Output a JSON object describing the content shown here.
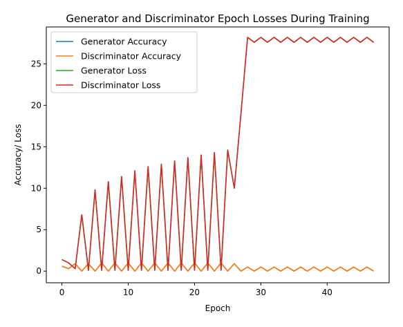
{
  "chart_data": {
    "type": "line",
    "title": "Generator and Discriminator Epoch Losses During Training",
    "xlabel": "Epoch",
    "ylabel": "Accuracy/ Loss",
    "xlim": [
      -2.35,
      49.35
    ],
    "ylim": [
      -1.4,
      29.45
    ],
    "xticks": [
      0,
      10,
      20,
      30,
      40
    ],
    "yticks": [
      0,
      5,
      10,
      15,
      20,
      25
    ],
    "grid": false,
    "legend_position": "top-left",
    "x": [
      0,
      1,
      2,
      3,
      4,
      5,
      6,
      7,
      8,
      9,
      10,
      11,
      12,
      13,
      14,
      15,
      16,
      17,
      18,
      19,
      20,
      21,
      22,
      23,
      24,
      25,
      26,
      27,
      28,
      29,
      30,
      31,
      32,
      33,
      34,
      35,
      36,
      37,
      38,
      39,
      40,
      41,
      42,
      43,
      44,
      45,
      46,
      47
    ],
    "series": [
      {
        "name": "Generator Accuracy",
        "color": "#1f77b4",
        "values": [
          0.6,
          0.3,
          0.9,
          0.0,
          0.9,
          0.0,
          1.0,
          0.0,
          1.0,
          0.0,
          1.0,
          0.0,
          1.0,
          0.0,
          1.0,
          0.0,
          1.0,
          0.0,
          1.0,
          0.0,
          1.0,
          0.0,
          1.0,
          0.0,
          1.0,
          0.0,
          0.9,
          0.0,
          0.5,
          0.0,
          0.5,
          0.0,
          0.5,
          0.0,
          0.5,
          0.0,
          0.5,
          0.0,
          0.5,
          0.0,
          0.5,
          0.0,
          0.5,
          0.0,
          0.5,
          0.0,
          0.5,
          0.0
        ]
      },
      {
        "name": "Discriminator Accuracy",
        "color": "#ff7f0e",
        "values": [
          0.6,
          0.3,
          0.9,
          0.0,
          0.9,
          0.0,
          1.0,
          0.0,
          1.0,
          0.0,
          1.0,
          0.0,
          1.0,
          0.0,
          1.0,
          0.0,
          1.0,
          0.0,
          1.0,
          0.0,
          1.0,
          0.0,
          1.0,
          0.0,
          1.0,
          0.0,
          0.9,
          0.0,
          0.5,
          0.0,
          0.5,
          0.0,
          0.5,
          0.0,
          0.5,
          0.0,
          0.5,
          0.0,
          0.5,
          0.0,
          0.5,
          0.0,
          0.5,
          0.0,
          0.5,
          0.0,
          0.5,
          0.0
        ]
      },
      {
        "name": "Generator Loss",
        "color": "#2ca02c",
        "values": [
          1.4,
          1.0,
          0.3,
          6.8,
          0.1,
          9.8,
          0.1,
          10.8,
          0.1,
          11.4,
          0.1,
          12.1,
          0.1,
          12.6,
          0.1,
          12.9,
          0.1,
          13.3,
          0.1,
          13.7,
          0.1,
          14.0,
          0.1,
          14.3,
          0.1,
          14.6,
          10.0,
          19.0,
          28.2,
          27.6,
          28.2,
          27.6,
          28.2,
          27.6,
          28.2,
          27.6,
          28.2,
          27.6,
          28.2,
          27.6,
          28.2,
          27.6,
          28.2,
          27.6,
          28.2,
          27.6,
          28.2,
          27.6
        ]
      },
      {
        "name": "Discriminator Loss",
        "color": "#d62728",
        "values": [
          1.4,
          1.0,
          0.3,
          6.8,
          0.1,
          9.8,
          0.1,
          10.8,
          0.1,
          11.4,
          0.1,
          12.1,
          0.1,
          12.6,
          0.1,
          12.9,
          0.1,
          13.3,
          0.1,
          13.7,
          0.1,
          14.0,
          0.1,
          14.3,
          0.1,
          14.6,
          10.0,
          19.0,
          28.2,
          27.6,
          28.2,
          27.6,
          28.2,
          27.6,
          28.2,
          27.6,
          28.2,
          27.6,
          28.2,
          27.6,
          28.2,
          27.6,
          28.2,
          27.6,
          28.2,
          27.6,
          28.2,
          27.6
        ]
      }
    ]
  }
}
